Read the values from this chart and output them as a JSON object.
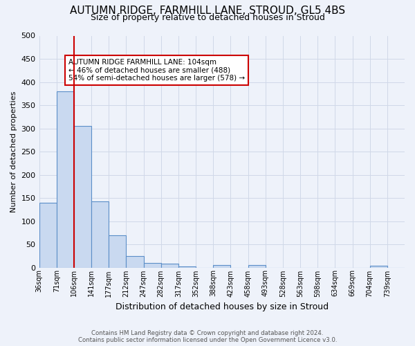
{
  "title": "AUTUMN RIDGE, FARMHILL LANE, STROUD, GL5 4BS",
  "subtitle": "Size of property relative to detached houses in Stroud",
  "xlabel": "Distribution of detached houses by size in Stroud",
  "ylabel": "Number of detached properties",
  "footer_line1": "Contains HM Land Registry data © Crown copyright and database right 2024.",
  "footer_line2": "Contains public sector information licensed under the Open Government Licence v3.0.",
  "bin_labels": [
    "36sqm",
    "71sqm",
    "106sqm",
    "141sqm",
    "177sqm",
    "212sqm",
    "247sqm",
    "282sqm",
    "317sqm",
    "352sqm",
    "388sqm",
    "423sqm",
    "458sqm",
    "493sqm",
    "528sqm",
    "563sqm",
    "598sqm",
    "634sqm",
    "669sqm",
    "704sqm",
    "739sqm"
  ],
  "bar_heights": [
    140,
    380,
    305,
    142,
    70,
    25,
    10,
    8,
    3,
    0,
    5,
    0,
    5,
    0,
    0,
    0,
    0,
    0,
    0,
    4,
    0
  ],
  "bar_color": "#c9d9f0",
  "bar_edge_color": "#5b8ec8",
  "grid_color": "#d0d8e8",
  "bg_color": "#eef2fa",
  "vline_index": 2,
  "vline_color": "#cc0000",
  "annotation_text": "AUTUMN RIDGE FARMHILL LANE: 104sqm\n← 46% of detached houses are smaller (488)\n54% of semi-detached houses are larger (578) →",
  "annotation_box_color": "#ffffff",
  "annotation_box_edge": "#cc0000",
  "ylim": [
    0,
    500
  ],
  "yticks": [
    0,
    50,
    100,
    150,
    200,
    250,
    300,
    350,
    400,
    450,
    500
  ],
  "title_fontsize": 11,
  "subtitle_fontsize": 9,
  "ylabel_fontsize": 8,
  "xlabel_fontsize": 9
}
